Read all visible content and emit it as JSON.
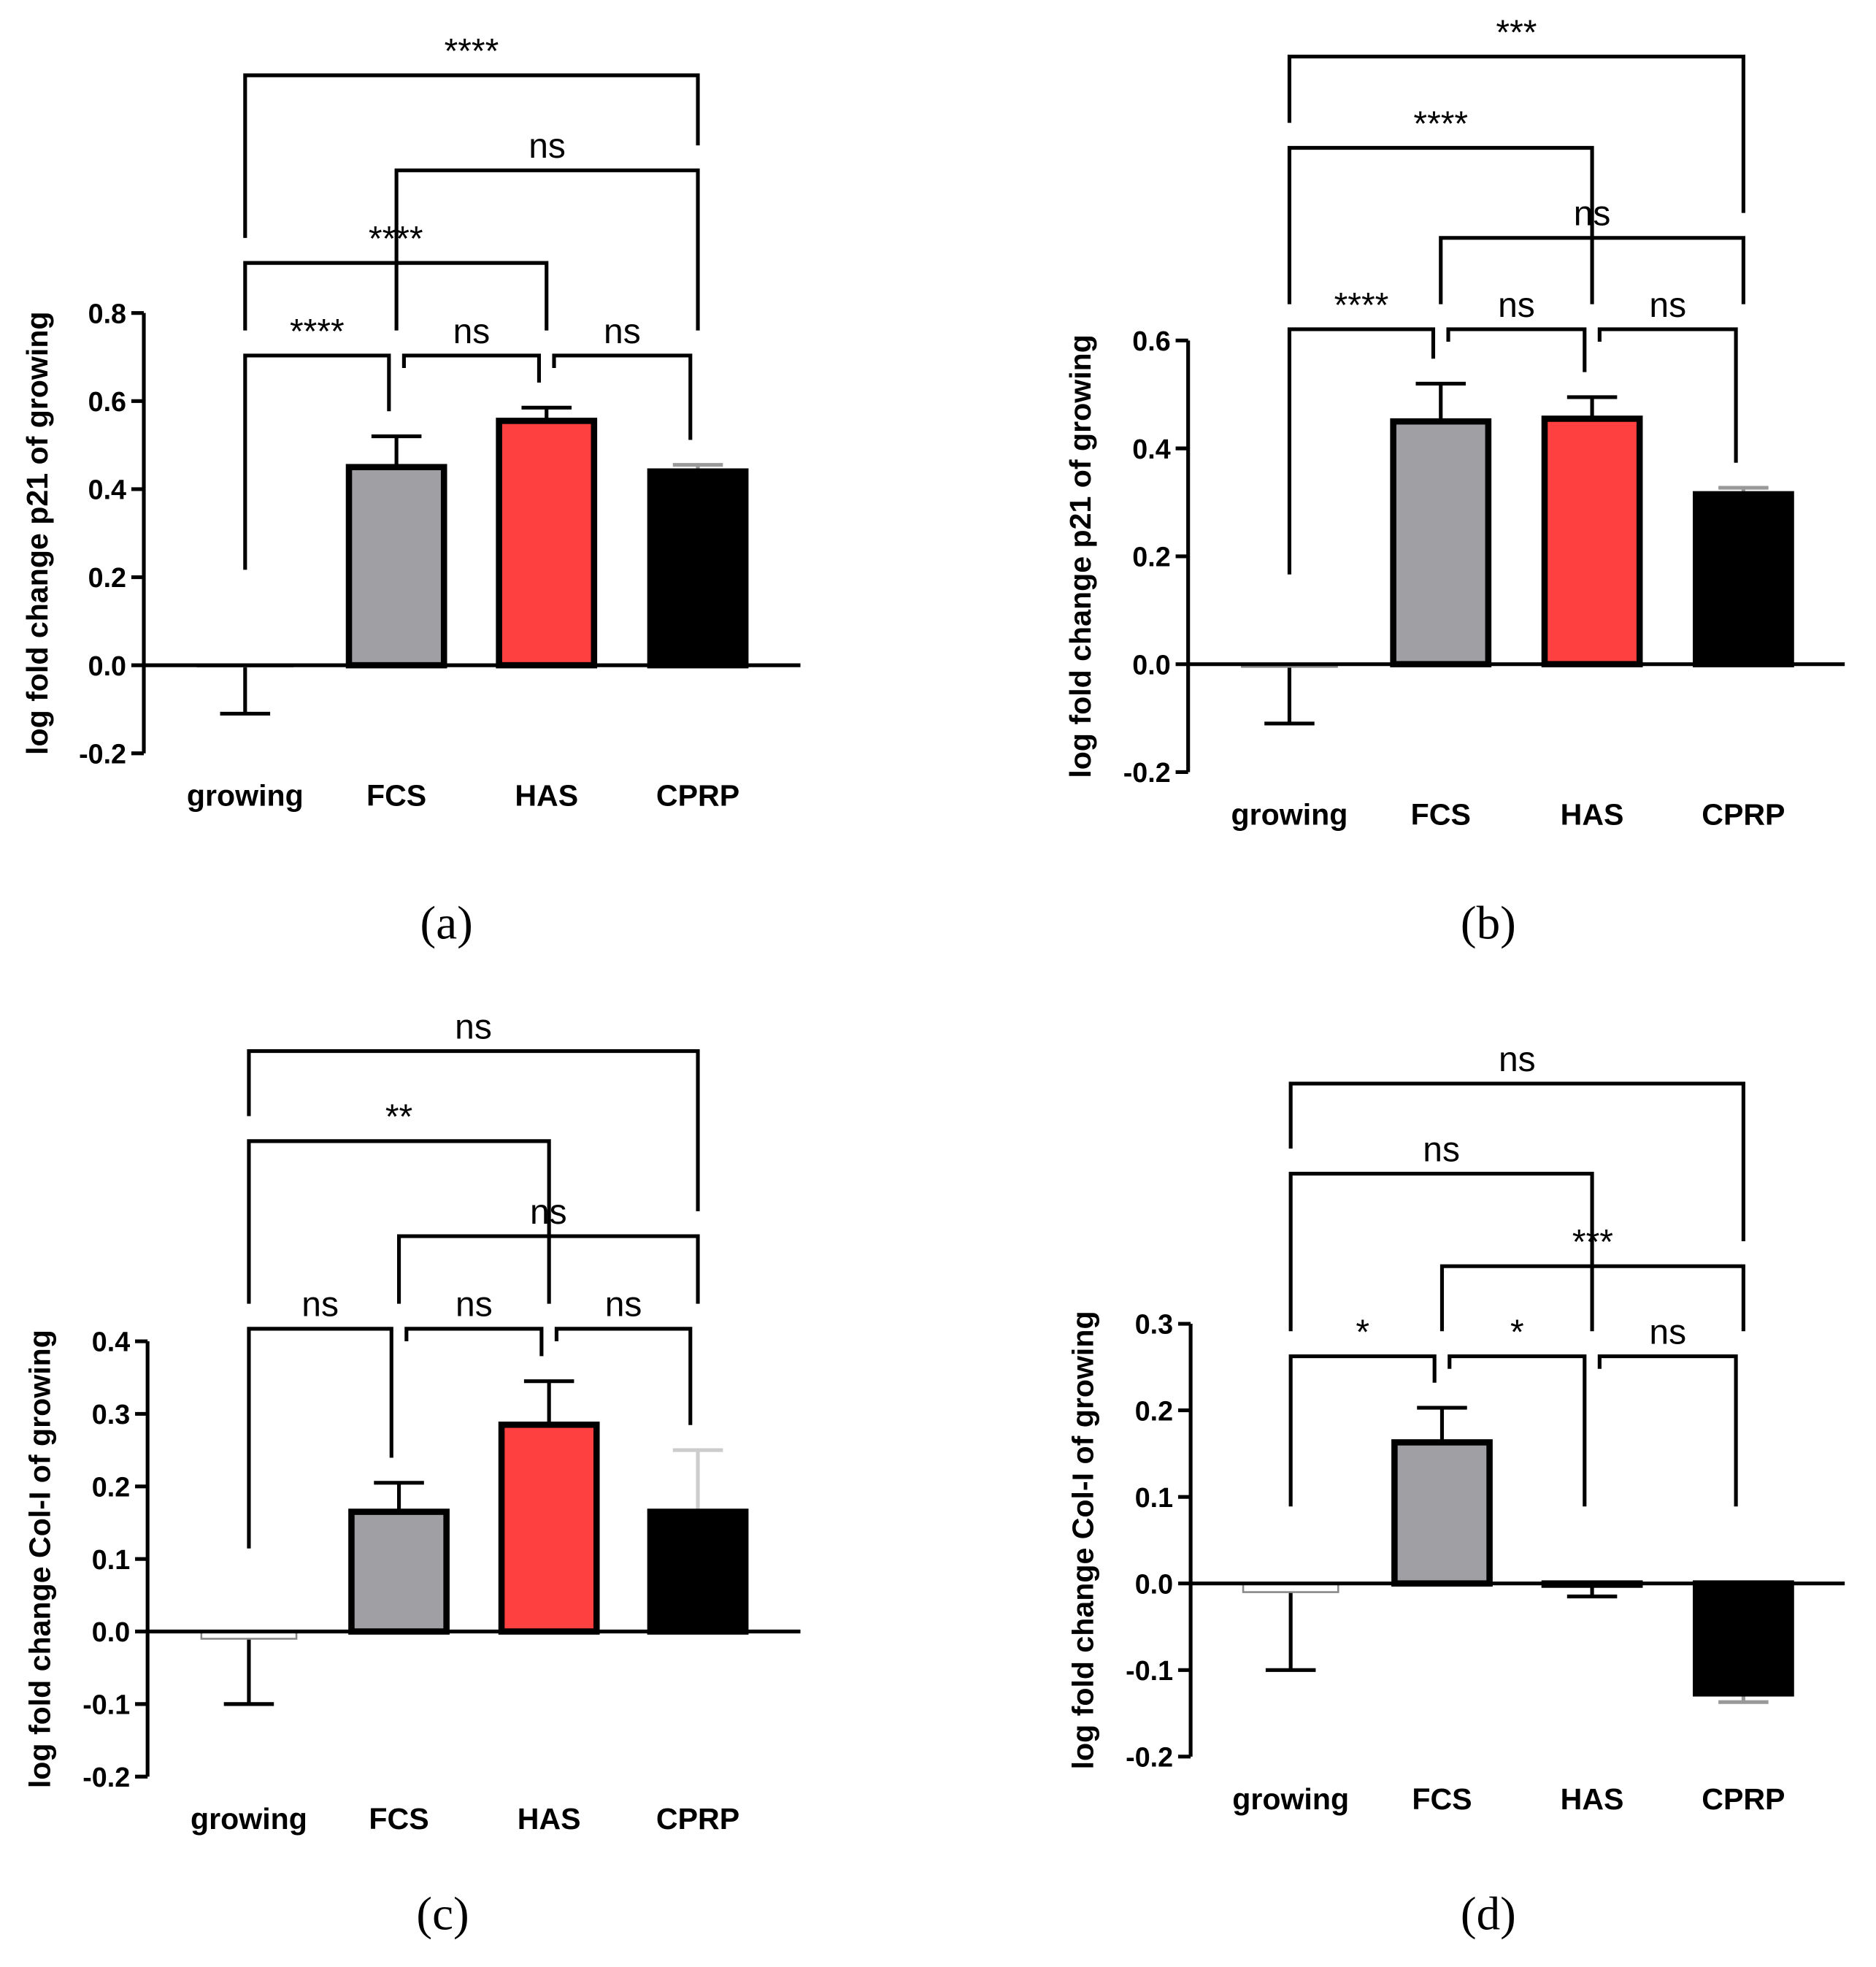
{
  "chart_data": [
    {
      "type": "bar",
      "panel_label": "(a)",
      "ylabel": "log fold change p21 of growing",
      "categories": [
        "growing",
        "FCS",
        "HAS",
        "CPRP"
      ],
      "values": [
        0,
        0.45,
        0.555,
        0.44
      ],
      "errors": [
        0.11,
        0.07,
        0.03,
        0.015
      ],
      "colors": [
        "#ffffff",
        "#a0a0a4",
        "#ff4040",
        "#000000"
      ],
      "error_colors": [
        "#000000",
        "#000000",
        "#000000",
        "#999999"
      ],
      "ylim": [
        -0.2,
        0.8
      ],
      "yticks": [
        -0.2,
        {
          "value": 0,
          "label": "0.0"
        },
        0.2,
        0.4,
        0.6,
        0.8
      ],
      "brackets": [
        {
          "groups": [
            "growing",
            "FCS"
          ],
          "label": "****"
        },
        {
          "groups": [
            "FCS",
            "HAS"
          ],
          "label": "ns"
        },
        {
          "groups": [
            "HAS",
            "CPRP"
          ],
          "label": "ns"
        },
        {
          "groups": [
            "growing",
            "HAS"
          ],
          "label": "****"
        },
        {
          "groups": [
            "FCS",
            "CPRP"
          ],
          "label": "ns"
        },
        {
          "groups": [
            "growing",
            "CPRP"
          ],
          "label": "****"
        }
      ]
    },
    {
      "type": "bar",
      "panel_label": "(b)",
      "ylabel": "log fold change p21 of growing",
      "categories": [
        "growing",
        "FCS",
        "HAS",
        "CPRP"
      ],
      "values": [
        -0.005,
        0.45,
        0.455,
        0.315
      ],
      "errors": [
        0.105,
        0.07,
        0.04,
        0.012
      ],
      "colors": [
        "#ffffff",
        "#a0a0a4",
        "#ff4040",
        "#000000"
      ],
      "error_colors": [
        "#000000",
        "#000000",
        "#000000",
        "#999999"
      ],
      "ylim": [
        -0.2,
        0.6
      ],
      "yticks": [
        -0.2,
        {
          "value": 0,
          "label": "0.0"
        },
        0.2,
        0.4,
        0.6
      ],
      "brackets": [
        {
          "groups": [
            "growing",
            "FCS"
          ],
          "label": "****"
        },
        {
          "groups": [
            "FCS",
            "HAS"
          ],
          "label": "ns"
        },
        {
          "groups": [
            "HAS",
            "CPRP"
          ],
          "label": "ns"
        },
        {
          "groups": [
            "FCS",
            "CPRP"
          ],
          "label": "ns"
        },
        {
          "groups": [
            "growing",
            "HAS"
          ],
          "label": "****"
        },
        {
          "groups": [
            "growing",
            "CPRP"
          ],
          "label": "***"
        }
      ]
    },
    {
      "type": "bar",
      "panel_label": "(c)",
      "ylabel": "log fold change Col-I of growing",
      "categories": [
        "growing",
        "FCS",
        "HAS",
        "CPRP"
      ],
      "values": [
        -0.01,
        0.165,
        0.285,
        0.165
      ],
      "errors": [
        0.09,
        0.04,
        0.06,
        0.085
      ],
      "colors": [
        "#ffffff",
        "#a0a0a4",
        "#ff4040",
        "#000000"
      ],
      "error_colors": [
        "#000000",
        "#000000",
        "#000000",
        "#cccccc"
      ],
      "ylim": [
        -0.2,
        0.4
      ],
      "yticks": [
        -0.2,
        -0.1,
        {
          "value": 0,
          "label": "0.0"
        },
        0.1,
        0.2,
        0.3,
        0.4
      ],
      "brackets": [
        {
          "groups": [
            "growing",
            "FCS"
          ],
          "label": "ns"
        },
        {
          "groups": [
            "FCS",
            "HAS"
          ],
          "label": "ns"
        },
        {
          "groups": [
            "HAS",
            "CPRP"
          ],
          "label": "ns"
        },
        {
          "groups": [
            "FCS",
            "CPRP"
          ],
          "label": "ns"
        },
        {
          "groups": [
            "growing",
            "HAS"
          ],
          "label": "**"
        },
        {
          "groups": [
            "growing",
            "CPRP"
          ],
          "label": "ns"
        }
      ]
    },
    {
      "type": "bar",
      "panel_label": "(d)",
      "ylabel": "log fold change Col-I of growing",
      "categories": [
        "growing",
        "FCS",
        "HAS",
        "CPRP"
      ],
      "values": [
        -0.01,
        0.163,
        0,
        -0.127
      ],
      "errors": [
        0.09,
        0.04,
        0.015,
        0.01
      ],
      "colors": [
        "#ffffff",
        "#a0a0a4",
        "#ff4040",
        "#000000"
      ],
      "error_colors": [
        "#000000",
        "#000000",
        "#000000",
        "#999999"
      ],
      "ylim": [
        -0.2,
        0.3
      ],
      "yticks": [
        -0.2,
        -0.1,
        {
          "value": 0,
          "label": "0.0"
        },
        0.1,
        0.2,
        0.3
      ],
      "brackets": [
        {
          "groups": [
            "growing",
            "FCS"
          ],
          "label": "*"
        },
        {
          "groups": [
            "FCS",
            "HAS"
          ],
          "label": "*"
        },
        {
          "groups": [
            "HAS",
            "CPRP"
          ],
          "label": "ns"
        },
        {
          "groups": [
            "FCS",
            "CPRP"
          ],
          "label": "***"
        },
        {
          "groups": [
            "growing",
            "HAS"
          ],
          "label": "ns"
        },
        {
          "groups": [
            "growing",
            "CPRP"
          ],
          "label": "ns"
        }
      ]
    }
  ]
}
